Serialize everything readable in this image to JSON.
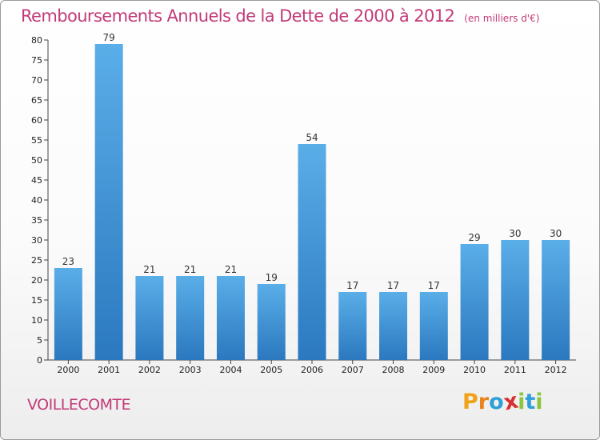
{
  "chart_data": {
    "type": "bar",
    "title": "Remboursements Annuels de la Dette de 2000 à 2012",
    "subtitle": "(en milliers d'€)",
    "categories": [
      "2000",
      "2001",
      "2002",
      "2003",
      "2004",
      "2005",
      "2006",
      "2007",
      "2008",
      "2009",
      "2010",
      "2011",
      "2012"
    ],
    "values": [
      23,
      79,
      21,
      21,
      21,
      19,
      54,
      17,
      17,
      17,
      29,
      30,
      30
    ],
    "data_labels": [
      "23",
      "79",
      "21",
      "21",
      "21",
      "19",
      "54",
      "17",
      "17",
      "17",
      "29",
      "30",
      "30"
    ],
    "ylim": [
      0,
      80
    ],
    "yticks": [
      0,
      5,
      10,
      15,
      20,
      25,
      30,
      35,
      40,
      45,
      50,
      55,
      60,
      65,
      70,
      75,
      80
    ],
    "xlabel": "",
    "ylabel": "",
    "grid": false,
    "bar_color": "#3b8fd8"
  },
  "footer": {
    "place_name": "VOILLECOMTE",
    "logo_text": "Proxiti",
    "logo_letters": [
      {
        "char": "P",
        "color": "#f0a21a"
      },
      {
        "char": "r",
        "color": "#e8841a"
      },
      {
        "char": "o",
        "color": "#2f9fd8"
      },
      {
        "char": "x",
        "color": "#d8302f"
      },
      {
        "char": "i",
        "color": "#8cc63f"
      },
      {
        "char": "t",
        "color": "#2f9fd8"
      },
      {
        "char": "i",
        "color": "#8cc63f"
      }
    ]
  },
  "colors": {
    "title": "#c23a78",
    "bar_light": "#5aaee8",
    "bar_dark": "#2b78bf"
  }
}
